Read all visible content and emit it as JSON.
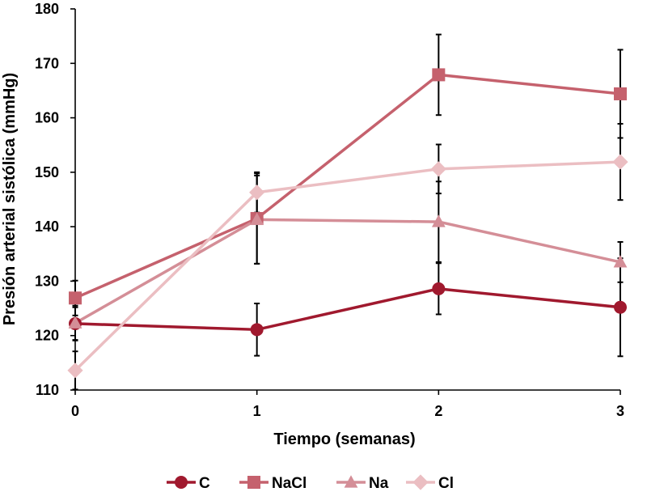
{
  "chart_data": {
    "type": "line",
    "title": "",
    "xlabel": "Tiempo (semanas)",
    "ylabel": "Presión arterial sistólica (mmHg)",
    "x": [
      0,
      1,
      2,
      3
    ],
    "xlim": [
      0,
      3
    ],
    "ylim": [
      110,
      180
    ],
    "yticks": [
      110,
      120,
      130,
      140,
      150,
      160,
      170,
      180
    ],
    "grid": false,
    "legend_position": "bottom",
    "series": [
      {
        "name": "C",
        "marker": "circle",
        "color": "#A0192E",
        "values": [
          122.2,
          121.1,
          128.6,
          125.2
        ],
        "errors": [
          3.0,
          4.8,
          4.7,
          9.0
        ]
      },
      {
        "name": "NaCl",
        "marker": "square",
        "color": "#C5616D",
        "values": [
          126.9,
          141.5,
          167.9,
          164.4
        ],
        "errors": [
          3.2,
          8.3,
          7.4,
          8.1
        ]
      },
      {
        "name": "Na",
        "marker": "triangle",
        "color": "#D48E97",
        "values": [
          122.3,
          141.3,
          140.9,
          133.5
        ],
        "errors": [
          3.2,
          8.1,
          7.4,
          3.7
        ]
      },
      {
        "name": "Cl",
        "marker": "diamond",
        "color": "#EBBEC2",
        "values": [
          113.6,
          146.3,
          150.6,
          151.9
        ],
        "errors": [
          3.5,
          3.7,
          4.5,
          7.0
        ]
      }
    ]
  }
}
